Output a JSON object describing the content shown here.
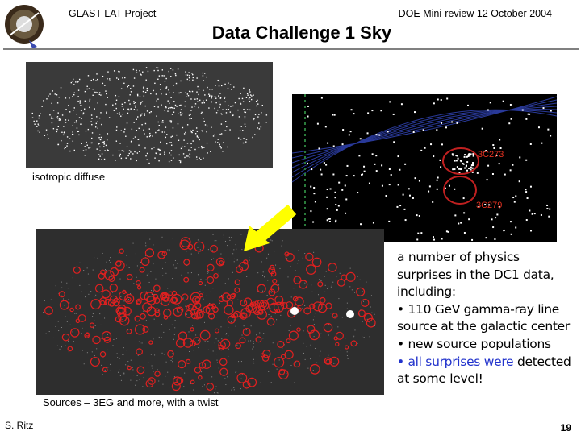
{
  "header": {
    "project": "GLAST LAT Project",
    "meeting": "DOE Mini-review 12 October 2004",
    "title": "Data Challenge 1 Sky"
  },
  "images": {
    "isotropic_caption": "isotropic diffuse",
    "zoom_labels": [
      "3C273",
      "3C279"
    ],
    "sources_caption": "Sources – 3EG and more, with a twist"
  },
  "notes": {
    "intro": "a number of physics surprises in the DC1 data, including:",
    "bullets": [
      "• 110 GeV gamma-ray line source at the galactic center",
      "• new source populations"
    ],
    "last_bullet": {
      "highlight": "• all surprises were",
      "rest": "detected at some level!"
    }
  },
  "footer": {
    "author": "S. Ritz",
    "page": "19"
  }
}
